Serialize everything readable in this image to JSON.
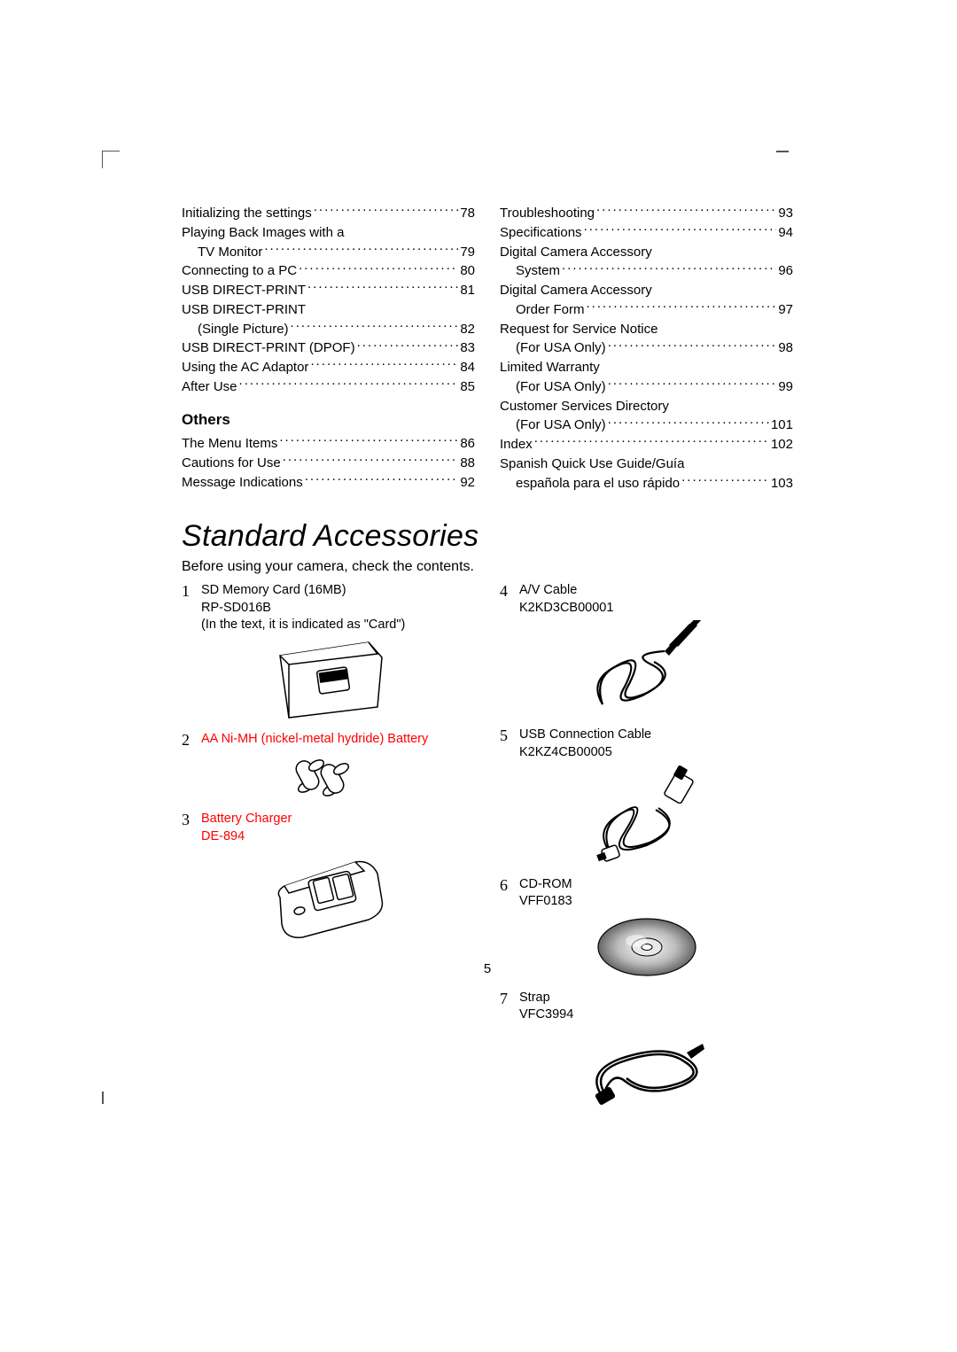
{
  "toc": {
    "left": {
      "items": [
        {
          "label": "Initializing the settings",
          "page": "78"
        },
        {
          "label": "Playing Back Images with a",
          "cont": true
        },
        {
          "label": "TV Monitor",
          "page": "79",
          "sub": true
        },
        {
          "label": "Connecting to a PC",
          "page": "80"
        },
        {
          "label": "USB DIRECT-PRINT",
          "page": "81"
        },
        {
          "label": "USB DIRECT-PRINT",
          "cont": true
        },
        {
          "label": "(Single Picture)",
          "page": "82",
          "sub": true
        },
        {
          "label": "USB DIRECT-PRINT (DPOF)",
          "page": "83"
        },
        {
          "label": "Using the AC Adaptor",
          "page": "84"
        },
        {
          "label": "After Use",
          "page": "85"
        }
      ],
      "section": "Others",
      "section_items": [
        {
          "label": "The Menu Items",
          "page": "86"
        },
        {
          "label": "Cautions for Use",
          "page": "88"
        },
        {
          "label": "Message Indications",
          "page": "92"
        }
      ]
    },
    "right": {
      "items": [
        {
          "label": "Troubleshooting",
          "page": "93"
        },
        {
          "label": "Specifications",
          "page": "94"
        },
        {
          "label": "Digital Camera Accessory",
          "cont": true
        },
        {
          "label": "System",
          "page": "96",
          "sub": true
        },
        {
          "label": "Digital Camera Accessory",
          "cont": true
        },
        {
          "label": "Order Form",
          "page": "97",
          "sub": true
        },
        {
          "label": "Request for Service Notice",
          "cont": true
        },
        {
          "label": "(For USA Only)",
          "page": "98",
          "sub": true
        },
        {
          "label": "Limited Warranty",
          "cont": true
        },
        {
          "label": "(For USA Only)",
          "page": "99",
          "sub": true
        },
        {
          "label": "Customer Services Directory",
          "cont": true
        },
        {
          "label": "(For USA Only)",
          "page": "101",
          "sub": true
        },
        {
          "label": "Index",
          "page": "102"
        },
        {
          "label": "Spanish Quick Use Guide/Guía",
          "cont": true
        },
        {
          "label": "española para el uso rápido",
          "page": "103",
          "sub": true
        }
      ]
    }
  },
  "title": "Standard Accessories",
  "subtitle": "Before using your camera, check the contents.",
  "accessories": {
    "left": [
      {
        "num": "1",
        "lines": [
          "SD Memory Card (16MB)",
          "RP-SD016B",
          "(In the text, it is indicated as \"Card\")"
        ],
        "illus": "sdcard"
      },
      {
        "num": "2",
        "lines": [
          "AA Ni-MH (nickel-metal hydride) Battery"
        ],
        "red": true,
        "illus": "batteries"
      },
      {
        "num": "3",
        "lines": [
          "Battery Charger",
          "DE-894"
        ],
        "red": true,
        "illus": "charger"
      }
    ],
    "right": [
      {
        "num": "4",
        "lines": [
          "A/V Cable",
          "K2KD3CB00001"
        ],
        "illus": "avcable"
      },
      {
        "num": "5",
        "lines": [
          "USB Connection Cable",
          "K2KZ4CB00005"
        ],
        "illus": "usbcable"
      },
      {
        "num": "6",
        "lines": [
          "CD-ROM",
          "VFF0183"
        ],
        "illus": "cdrom"
      },
      {
        "num": "7",
        "lines": [
          "Strap",
          "VFC3994"
        ],
        "illus": "strap"
      }
    ]
  },
  "page_number": "5",
  "colors": {
    "text": "#000000",
    "red": "#ff0000",
    "bg": "#ffffff"
  }
}
